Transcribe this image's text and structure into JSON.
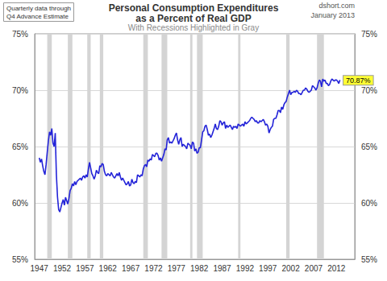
{
  "chart_data": {
    "type": "line",
    "title": "Personal Consumption Expenditures\nas a Percent of Real GDP",
    "subtitle": "With Recessions Highlighted in Gray",
    "note": "Quarterly data through\nQ4 Advance Estimate",
    "source": "dshort.com",
    "date_label": "January 2013",
    "color": "#2323d8",
    "grid": true,
    "xlim": [
      1946,
      2016
    ],
    "xticks": [
      1947,
      1952,
      1957,
      1962,
      1967,
      1972,
      1977,
      1982,
      1987,
      1992,
      1997,
      2002,
      2007,
      2012
    ],
    "ylim": [
      55,
      75
    ],
    "yticks": [
      {
        "value": 55,
        "label": "55%"
      },
      {
        "value": 60,
        "label": "60%"
      },
      {
        "value": 65,
        "label": "65%"
      },
      {
        "value": 70,
        "label": "70%"
      },
      {
        "value": 75,
        "label": "75%"
      }
    ],
    "y2lim": [
      55,
      75
    ],
    "y2ticks": [
      {
        "value": 55,
        "label": "55%"
      },
      {
        "value": 60,
        "label": "60%"
      },
      {
        "value": 65,
        "label": "65%"
      },
      {
        "value": 70,
        "label": "70%"
      },
      {
        "value": 75,
        "label": "75%"
      }
    ],
    "recessions": [
      [
        1948.75,
        1949.75
      ],
      [
        1953.25,
        1954.25
      ],
      [
        1957.5,
        1958.25
      ],
      [
        1960.25,
        1961.0
      ],
      [
        1969.75,
        1970.75
      ],
      [
        1973.75,
        1975.0
      ],
      [
        1980.0,
        1980.5
      ],
      [
        1981.5,
        1982.75
      ],
      [
        1990.5,
        1991.0
      ],
      [
        2001.0,
        2001.75
      ],
      [
        2007.75,
        2009.25
      ]
    ],
    "annotation": {
      "x": 2012.75,
      "y": 70.87,
      "label": "70.87%"
    },
    "x": [
      1947,
      1947.25,
      1947.5,
      1947.75,
      1948,
      1948.25,
      1948.5,
      1948.75,
      1949,
      1949.25,
      1949.5,
      1949.75,
      1950,
      1950.25,
      1950.5,
      1950.75,
      1951,
      1951.25,
      1951.5,
      1951.75,
      1952,
      1952.25,
      1952.5,
      1952.75,
      1953,
      1953.25,
      1953.5,
      1953.75,
      1954,
      1954.25,
      1954.5,
      1954.75,
      1955,
      1955.25,
      1955.5,
      1955.75,
      1956,
      1956.25,
      1956.5,
      1956.75,
      1957,
      1957.25,
      1957.5,
      1957.75,
      1958,
      1958.25,
      1958.5,
      1958.75,
      1959,
      1959.25,
      1959.5,
      1959.75,
      1960,
      1960.25,
      1960.5,
      1960.75,
      1961,
      1961.25,
      1961.5,
      1961.75,
      1962,
      1962.25,
      1962.5,
      1962.75,
      1963,
      1963.25,
      1963.5,
      1963.75,
      1964,
      1964.25,
      1964.5,
      1964.75,
      1965,
      1965.25,
      1965.5,
      1965.75,
      1966,
      1966.25,
      1966.5,
      1966.75,
      1967,
      1967.25,
      1967.5,
      1967.75,
      1968,
      1968.25,
      1968.5,
      1968.75,
      1969,
      1969.25,
      1969.5,
      1969.75,
      1970,
      1970.25,
      1970.5,
      1970.75,
      1971,
      1971.25,
      1971.5,
      1971.75,
      1972,
      1972.25,
      1972.5,
      1972.75,
      1973,
      1973.25,
      1973.5,
      1973.75,
      1974,
      1974.25,
      1974.5,
      1974.75,
      1975,
      1975.25,
      1975.5,
      1975.75,
      1976,
      1976.25,
      1976.5,
      1976.75,
      1977,
      1977.25,
      1977.5,
      1977.75,
      1978,
      1978.25,
      1978.5,
      1978.75,
      1979,
      1979.25,
      1979.5,
      1979.75,
      1980,
      1980.25,
      1980.5,
      1980.75,
      1981,
      1981.25,
      1981.5,
      1981.75,
      1982,
      1982.25,
      1982.5,
      1982.75,
      1983,
      1983.25,
      1983.5,
      1983.75,
      1984,
      1984.25,
      1984.5,
      1984.75,
      1985,
      1985.25,
      1985.5,
      1985.75,
      1986,
      1986.25,
      1986.5,
      1986.75,
      1987,
      1987.25,
      1987.5,
      1987.75,
      1988,
      1988.25,
      1988.5,
      1988.75,
      1989,
      1989.25,
      1989.5,
      1989.75,
      1990,
      1990.25,
      1990.5,
      1990.75,
      1991,
      1991.25,
      1991.5,
      1991.75,
      1992,
      1992.25,
      1992.5,
      1992.75,
      1993,
      1993.25,
      1993.5,
      1993.75,
      1994,
      1994.25,
      1994.5,
      1994.75,
      1995,
      1995.25,
      1995.5,
      1995.75,
      1996,
      1996.25,
      1996.5,
      1996.75,
      1997,
      1997.25,
      1997.5,
      1997.75,
      1998,
      1998.25,
      1998.5,
      1998.75,
      1999,
      1999.25,
      1999.5,
      1999.75,
      2000,
      2000.25,
      2000.5,
      2000.75,
      2001,
      2001.25,
      2001.5,
      2001.75,
      2002,
      2002.25,
      2002.5,
      2002.75,
      2003,
      2003.25,
      2003.5,
      2003.75,
      2004,
      2004.25,
      2004.5,
      2004.75,
      2005,
      2005.25,
      2005.5,
      2005.75,
      2006,
      2006.25,
      2006.5,
      2006.75,
      2007,
      2007.25,
      2007.5,
      2007.75,
      2008,
      2008.25,
      2008.5,
      2008.75,
      2009,
      2009.25,
      2009.5,
      2009.75,
      2010,
      2010.25,
      2010.5,
      2010.75,
      2011,
      2011.25,
      2011.5,
      2011.75,
      2012,
      2012.25,
      2012.5,
      2012.75
    ],
    "values": [
      64.0,
      63.6,
      63.9,
      63.3,
      62.8,
      62.5,
      63.4,
      64.5,
      65.5,
      66.3,
      66.0,
      66.6,
      65.3,
      65.0,
      66.2,
      62.5,
      60.5,
      59.4,
      59.2,
      59.6,
      60.0,
      60.3,
      59.8,
      60.5,
      60.2,
      59.9,
      60.4,
      61.1,
      61.3,
      61.7,
      61.5,
      61.9,
      61.6,
      61.9,
      62.0,
      62.1,
      62.2,
      62.0,
      62.3,
      62.4,
      62.2,
      62.5,
      62.3,
      63.0,
      63.6,
      63.1,
      62.6,
      62.4,
      62.1,
      62.4,
      62.9,
      62.7,
      62.6,
      63.3,
      63.2,
      63.5,
      63.4,
      62.8,
      62.5,
      62.4,
      62.6,
      62.5,
      62.4,
      62.7,
      62.5,
      62.3,
      62.2,
      62.4,
      62.6,
      62.4,
      62.7,
      62.3,
      62.0,
      62.2,
      62.0,
      61.8,
      61.6,
      61.7,
      61.9,
      61.5,
      61.6,
      62.1,
      61.8,
      61.7,
      61.9,
      61.8,
      62.5,
      62.4,
      62.3,
      62.5,
      62.4,
      63.0,
      63.3,
      63.4,
      63.2,
      63.8,
      63.7,
      63.9,
      63.8,
      64.3,
      64.2,
      64.1,
      64.4,
      64.4,
      64.2,
      63.8,
      64.0,
      63.7,
      64.0,
      64.3,
      64.8,
      64.7,
      65.6,
      65.8,
      65.3,
      65.4,
      65.3,
      65.5,
      65.7,
      66.0,
      66.2,
      65.6,
      65.2,
      65.6,
      65.8,
      65.0,
      65.2,
      65.1,
      65.0,
      64.8,
      65.3,
      65.2,
      65.1,
      64.8,
      65.4,
      65.3,
      64.6,
      64.8,
      64.4,
      64.5,
      64.9,
      64.9,
      65.6,
      66.3,
      66.4,
      66.8,
      66.9,
      66.5,
      66.0,
      66.1,
      65.8,
      66.0,
      66.3,
      66.6,
      67.0,
      66.6,
      66.5,
      66.8,
      67.3,
      67.2,
      66.9,
      67.1,
      67.2,
      66.6,
      66.9,
      66.7,
      66.8,
      66.9,
      66.7,
      66.5,
      66.8,
      66.7,
      66.8,
      66.6,
      67.0,
      66.9,
      66.8,
      66.9,
      67.0,
      66.8,
      67.2,
      67.0,
      67.1,
      67.2,
      67.3,
      67.5,
      67.6,
      67.5,
      67.4,
      67.2,
      67.3,
      67.1,
      67.1,
      67.3,
      67.2,
      67.3,
      67.4,
      67.2,
      66.9,
      67.0,
      66.8,
      66.2,
      66.5,
      66.7,
      66.8,
      67.4,
      67.5,
      67.5,
      67.8,
      68.2,
      68.2,
      68.0,
      68.5,
      68.3,
      68.7,
      68.9,
      69.0,
      69.4,
      69.7,
      70.0,
      69.6,
      69.8,
      69.8,
      69.9,
      69.8,
      70.0,
      69.9,
      69.7,
      69.7,
      69.6,
      69.8,
      70.0,
      70.0,
      70.2,
      70.1,
      69.9,
      69.8,
      69.9,
      70.0,
      70.4,
      70.3,
      70.2,
      70.0,
      70.2,
      70.6,
      70.9,
      70.8,
      70.3,
      71.0,
      70.8,
      70.9,
      70.6,
      70.6,
      70.4,
      70.5,
      70.8,
      71.0,
      70.9,
      70.8,
      70.9,
      70.9,
      70.8,
      70.6,
      70.87
    ]
  }
}
